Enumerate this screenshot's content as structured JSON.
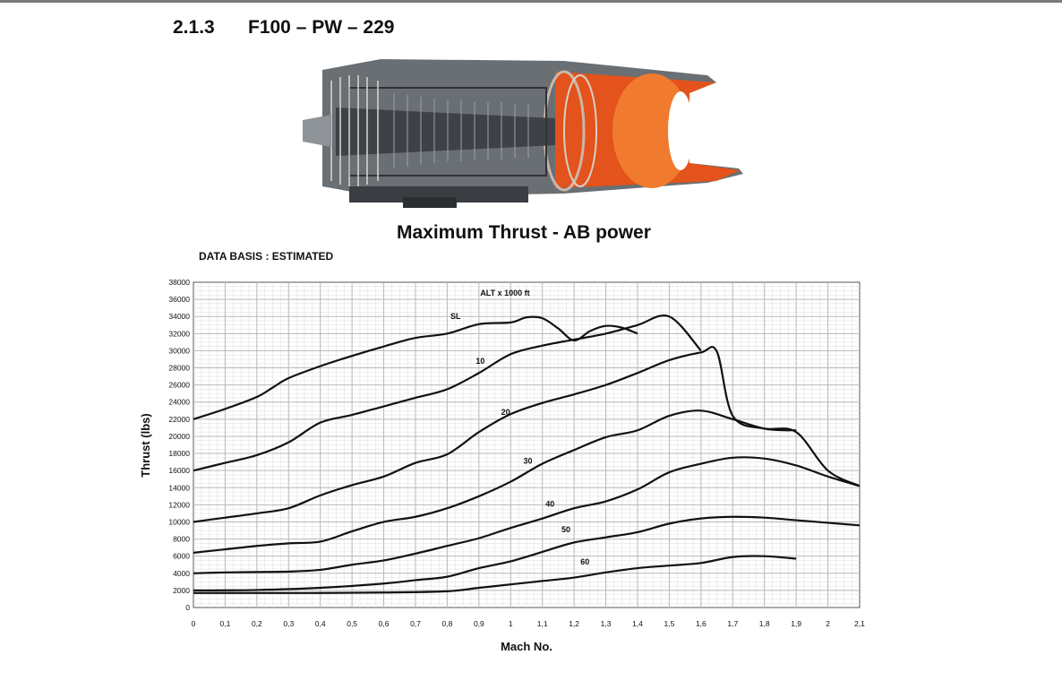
{
  "page": {
    "section_number": "2.1.3",
    "section_title": "F100 – PW – 229",
    "data_basis": "DATA BASIS : ESTIMATED"
  },
  "colors": {
    "curve": "#111111",
    "grid": "#b8b8b8",
    "nozzle_outer": "#e3531b",
    "nozzle_inner": "#f07b2e",
    "engine_metal": "#555a60"
  },
  "chart_data": {
    "type": "line",
    "title": "Maximum Thrust - AB power",
    "xlabel": "Mach No.",
    "ylabel": "Thrust (lbs)",
    "legend_title": "ALT x 1000 ft",
    "xlim": [
      0,
      2.1
    ],
    "ylim": [
      0,
      38000
    ],
    "x_ticks": [
      "0",
      "0,1",
      "0,2",
      "0,3",
      "0,4",
      "0,5",
      "0,6",
      "0,7",
      "0,8",
      "0,9",
      "1",
      "1,1",
      "1,2",
      "1,3",
      "1,4",
      "1,5",
      "1,6",
      "1,7",
      "1,8",
      "1,9",
      "2",
      "2,1"
    ],
    "y_ticks": [
      "0",
      "2000",
      "4000",
      "6000",
      "8000",
      "10000",
      "12000",
      "14000",
      "16000",
      "18000",
      "20000",
      "22000",
      "24000",
      "26000",
      "28000",
      "30000",
      "32000",
      "34000",
      "36000",
      "38000"
    ],
    "grid": true,
    "series": [
      {
        "name": "SL",
        "label_at": [
          0.81,
          33700
        ],
        "x": [
          0,
          0.1,
          0.2,
          0.25,
          0.3,
          0.4,
          0.5,
          0.6,
          0.7,
          0.8,
          0.9,
          1.0,
          1.05,
          1.1,
          1.15,
          1.2,
          1.25,
          1.3,
          1.35,
          1.4
        ],
        "y": [
          22000,
          23200,
          24600,
          25700,
          26800,
          28200,
          29400,
          30500,
          31500,
          32000,
          33100,
          33300,
          33900,
          33800,
          32600,
          31200,
          32300,
          32900,
          32700,
          32000
        ]
      },
      {
        "name": "10",
        "label_at": [
          0.89,
          28500
        ],
        "x": [
          0,
          0.1,
          0.2,
          0.3,
          0.4,
          0.5,
          0.6,
          0.7,
          0.8,
          0.9,
          1.0,
          1.1,
          1.2,
          1.3,
          1.4,
          1.5,
          1.6
        ],
        "y": [
          16000,
          16900,
          17800,
          19300,
          21600,
          22500,
          23500,
          24500,
          25500,
          27400,
          29600,
          30600,
          31300,
          32000,
          33000,
          34000,
          30000
        ]
      },
      {
        "name": "20",
        "label_at": [
          0.97,
          22500
        ],
        "x": [
          0,
          0.1,
          0.2,
          0.3,
          0.4,
          0.5,
          0.6,
          0.7,
          0.8,
          0.9,
          1.0,
          1.1,
          1.2,
          1.3,
          1.4,
          1.5,
          1.6,
          1.65,
          1.7,
          1.8,
          1.9
        ],
        "y": [
          10000,
          10500,
          11000,
          11600,
          13100,
          14300,
          15300,
          16900,
          17900,
          20500,
          22600,
          23900,
          24900,
          26000,
          27400,
          28900,
          29800,
          29900,
          22400,
          20900,
          20700
        ]
      },
      {
        "name": "30",
        "label_at": [
          1.04,
          16800
        ],
        "x": [
          0,
          0.1,
          0.2,
          0.3,
          0.4,
          0.5,
          0.6,
          0.7,
          0.8,
          0.9,
          1.0,
          1.1,
          1.2,
          1.3,
          1.4,
          1.5,
          1.6,
          1.7,
          1.8,
          1.9,
          2.0,
          2.1
        ],
        "y": [
          6400,
          6800,
          7200,
          7500,
          7700,
          8900,
          10000,
          10600,
          11600,
          13000,
          14700,
          16800,
          18400,
          19900,
          20700,
          22400,
          23000,
          22000,
          20900,
          20500,
          16000,
          14200
        ]
      },
      {
        "name": "40",
        "label_at": [
          1.11,
          11800
        ],
        "x": [
          0,
          0.1,
          0.2,
          0.3,
          0.4,
          0.5,
          0.6,
          0.7,
          0.8,
          0.9,
          1.0,
          1.1,
          1.2,
          1.3,
          1.4,
          1.5,
          1.6,
          1.7,
          1.8,
          1.9,
          2.0,
          2.1
        ],
        "y": [
          4000,
          4100,
          4150,
          4200,
          4400,
          5000,
          5500,
          6300,
          7200,
          8100,
          9300,
          10400,
          11600,
          12400,
          13800,
          15800,
          16800,
          17500,
          17400,
          16600,
          15300,
          14200
        ]
      },
      {
        "name": "50",
        "label_at": [
          1.16,
          8800
        ],
        "x": [
          0,
          0.2,
          0.4,
          0.6,
          0.7,
          0.8,
          0.9,
          1.0,
          1.1,
          1.2,
          1.3,
          1.4,
          1.5,
          1.6,
          1.7,
          1.8,
          1.9,
          2.0,
          2.1
        ],
        "y": [
          2000,
          2050,
          2300,
          2800,
          3200,
          3600,
          4600,
          5400,
          6500,
          7600,
          8200,
          8800,
          9800,
          10400,
          10600,
          10500,
          10200,
          9900,
          9600
        ]
      },
      {
        "name": "60",
        "label_at": [
          1.22,
          5000
        ],
        "x": [
          0,
          0.2,
          0.4,
          0.6,
          0.8,
          0.9,
          1.0,
          1.1,
          1.2,
          1.3,
          1.4,
          1.5,
          1.6,
          1.7,
          1.8,
          1.9
        ],
        "y": [
          1700,
          1700,
          1700,
          1750,
          1900,
          2300,
          2700,
          3100,
          3500,
          4100,
          4600,
          4900,
          5200,
          5900,
          6000,
          5700
        ]
      }
    ]
  }
}
